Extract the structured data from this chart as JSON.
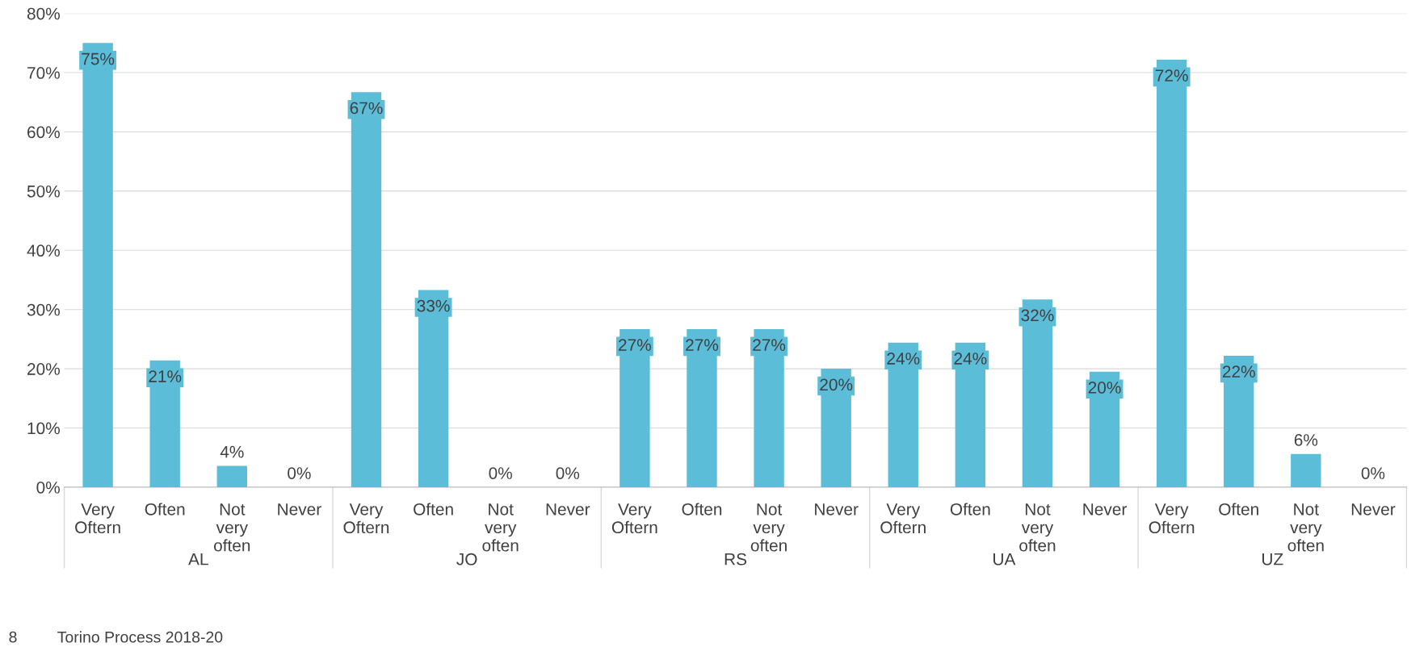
{
  "chart_data": {
    "type": "bar",
    "categories": [
      "Very\nOftern",
      "Often",
      "Not\nvery\noften",
      "Never",
      "Very\nOftern",
      "Often",
      "Not\nvery\noften",
      "Never",
      "Very\nOftern",
      "Often",
      "Not\nvery\noften",
      "Never",
      "Very\nOftern",
      "Often",
      "Not\nvery\noften",
      "Never",
      "Very\nOftern",
      "Often",
      "Not\nvery\noften",
      "Never"
    ],
    "values": [
      75,
      21.4,
      3.6,
      0,
      66.7,
      33.3,
      0,
      0,
      26.7,
      26.7,
      26.7,
      20,
      24.4,
      24.4,
      31.7,
      19.5,
      72.2,
      22.2,
      5.6,
      0
    ],
    "value_labels": [
      "75%",
      "21%",
      "4%",
      "0%",
      "67%",
      "33%",
      "0%",
      "0%",
      "27%",
      "27%",
      "27%",
      "20%",
      "24%",
      "24%",
      "32%",
      "20%",
      "72%",
      "22%",
      "6%",
      "0%"
    ],
    "color": "#5bbdd8",
    "ylim": [
      0,
      80
    ],
    "yticks": [
      {
        "value": 0,
        "label": "0%"
      },
      {
        "value": 10,
        "label": "10%"
      },
      {
        "value": 20,
        "label": "20%"
      },
      {
        "value": 30,
        "label": "30%"
      },
      {
        "value": 40,
        "label": "40%"
      },
      {
        "value": 50,
        "label": "50%"
      },
      {
        "value": 60,
        "label": "60%"
      },
      {
        "value": 70,
        "label": "70%"
      },
      {
        "value": 80,
        "label": "80%"
      }
    ],
    "grid": "y",
    "annotations": [
      "AL",
      "JO",
      "RS",
      "UA",
      "UZ",
      "8",
      "Torino Process 2018-20"
    ]
  }
}
